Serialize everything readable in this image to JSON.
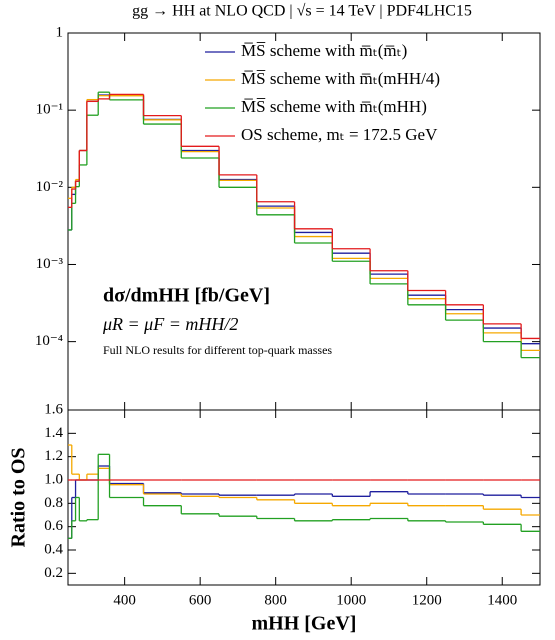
{
  "chart_data": [
    {
      "type": "histogram",
      "title": "gg → HH at NLO QCD | √s = 14 TeV | PDF4LHC15",
      "bins": [
        250,
        260,
        270,
        280,
        300,
        330,
        360,
        450,
        550,
        650,
        750,
        850,
        950,
        1050,
        1150,
        1250,
        1350,
        1450,
        1500
      ],
      "xlim": [
        250,
        1500
      ],
      "log_y": true,
      "ylim": [
        1.3e-05,
        1
      ],
      "yticks": [
        {
          "value": 0.0001,
          "label": "10⁻⁴"
        },
        {
          "value": 0.001,
          "label": "10⁻³"
        },
        {
          "value": 0.01,
          "label": "10⁻²"
        },
        {
          "value": 0.1,
          "label": "10⁻¹"
        },
        1
      ],
      "legend": "upper right",
      "annotations": [
        "dσ/dmHH [fb/GeV]",
        "μR = μF = mHH/2",
        "Full NLO results for different top-quark masses"
      ],
      "series": [
        {
          "name": "M̅S̅ scheme with m̅ₜ(m̅ₜ)",
          "color": "#1f1f9e",
          "values": [
            0.0028,
            0.0081,
            0.012,
            0.03,
            0.13,
            0.157,
            0.155,
            0.076,
            0.03,
            0.0126,
            0.0057,
            0.0026,
            0.0014,
            0.00075,
            0.0004,
            0.00026,
            0.00015,
            9.4e-05
          ]
        },
        {
          "name": "M̅S̅ scheme with m̅ₜ(mHH/4)",
          "color": "#f5a800",
          "values": [
            0.0072,
            0.01,
            0.0126,
            0.03,
            0.137,
            0.154,
            0.154,
            0.075,
            0.029,
            0.0123,
            0.0054,
            0.0023,
            0.0012,
            0.00066,
            0.00036,
            0.00023,
            0.00013,
            7.7e-05
          ]
        },
        {
          "name": "M̅S̅ scheme with m̅ₜ(mHH)",
          "color": "#22a022",
          "values": [
            0.0028,
            0.0062,
            0.0102,
            0.0195,
            0.086,
            0.171,
            0.136,
            0.066,
            0.024,
            0.01,
            0.0044,
            0.0019,
            0.0011,
            0.00056,
            0.0003,
            0.00019,
            0.0001,
            6.2e-05
          ]
        },
        {
          "name": "OS scheme, mₜ = 172.5 GeV",
          "color": "#e31a1c",
          "values": [
            0.0055,
            0.0095,
            0.012,
            0.03,
            0.13,
            0.14,
            0.16,
            0.085,
            0.034,
            0.0145,
            0.0065,
            0.0029,
            0.0016,
            0.00083,
            0.00046,
            0.0003,
            0.00017,
            0.00011
          ]
        }
      ]
    },
    {
      "type": "histogram",
      "bins": [
        250,
        260,
        270,
        280,
        300,
        330,
        360,
        450,
        550,
        650,
        750,
        850,
        950,
        1050,
        1150,
        1250,
        1350,
        1450,
        1500
      ],
      "xlim": [
        250,
        1500
      ],
      "xticks": [
        400,
        600,
        800,
        1000,
        1200,
        1400
      ],
      "ylim": [
        0.1,
        1.6
      ],
      "yticks": [
        {
          "value": 0.2,
          "label": "0.2"
        },
        {
          "value": 0.4,
          "label": "0.4"
        },
        {
          "value": 0.6,
          "label": "0.6"
        },
        {
          "value": 0.8,
          "label": "0.8"
        },
        {
          "value": 1.0,
          "label": "1.0"
        },
        {
          "value": 1.2,
          "label": "1.2"
        },
        {
          "value": 1.4,
          "label": "1.4"
        },
        {
          "value": 1.6,
          "label": "1.6"
        }
      ],
      "xlabel": "mHH [GeV]",
      "ylabel": "Ratio to OS",
      "series": [
        {
          "color": "#1f1f9e",
          "values": [
            0.5,
            0.85,
            1.0,
            1.0,
            1.0,
            1.12,
            0.97,
            0.89,
            0.88,
            0.87,
            0.87,
            0.88,
            0.86,
            0.9,
            0.88,
            0.88,
            0.87,
            0.85
          ]
        },
        {
          "color": "#f5a800",
          "values": [
            1.3,
            1.05,
            1.05,
            1.0,
            1.05,
            1.1,
            0.96,
            0.88,
            0.86,
            0.85,
            0.83,
            0.8,
            0.78,
            0.8,
            0.78,
            0.78,
            0.75,
            0.7
          ]
        },
        {
          "color": "#22a022",
          "values": [
            0.5,
            0.65,
            0.85,
            0.65,
            0.66,
            1.22,
            0.85,
            0.78,
            0.71,
            0.69,
            0.67,
            0.65,
            0.66,
            0.67,
            0.65,
            0.64,
            0.62,
            0.56
          ]
        },
        {
          "color": "#e31a1c",
          "values": [
            1,
            1,
            1,
            1,
            1,
            1,
            1,
            1,
            1,
            1,
            1,
            1,
            1,
            1,
            1,
            1,
            1,
            1
          ]
        }
      ]
    }
  ]
}
